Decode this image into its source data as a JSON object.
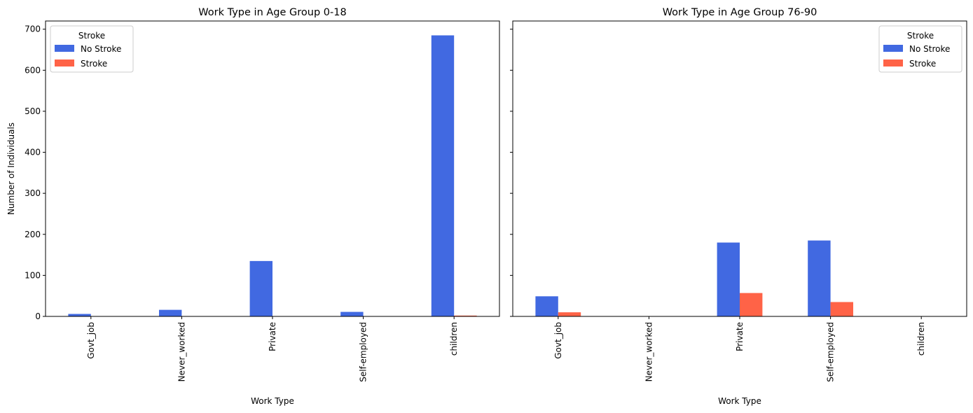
{
  "colors": {
    "no_stroke": "#4169E1",
    "stroke": "#FF6347"
  },
  "chart_data": [
    {
      "type": "bar",
      "title": "Work Type in Age Group 0-18",
      "xlabel": "Work Type",
      "ylabel": "Number of Individuals",
      "categories": [
        "Govt_job",
        "Never_worked",
        "Private",
        "Self-employed",
        "children"
      ],
      "series": [
        {
          "name": "No Stroke",
          "values": [
            6,
            16,
            135,
            11,
            685
          ]
        },
        {
          "name": "Stroke",
          "values": [
            0,
            0,
            0,
            0,
            2
          ]
        }
      ],
      "ylim": [
        0,
        720
      ],
      "yticks": [
        0,
        100,
        200,
        300,
        400,
        500,
        600,
        700
      ],
      "legend": {
        "title": "Stroke",
        "position": "top-left"
      }
    },
    {
      "type": "bar",
      "title": "Work Type in Age Group 76-90",
      "xlabel": "Work Type",
      "ylabel": "",
      "categories": [
        "Govt_job",
        "Never_worked",
        "Private",
        "Self-employed",
        "children"
      ],
      "series": [
        {
          "name": "No Stroke",
          "values": [
            49,
            0,
            180,
            185,
            0
          ]
        },
        {
          "name": "Stroke",
          "values": [
            10,
            0,
            57,
            35,
            0
          ]
        }
      ],
      "ylim": [
        0,
        720
      ],
      "yticks": [
        0,
        100,
        200,
        300,
        400,
        500,
        600,
        700
      ],
      "legend": {
        "title": "Stroke",
        "position": "top-right"
      }
    }
  ]
}
